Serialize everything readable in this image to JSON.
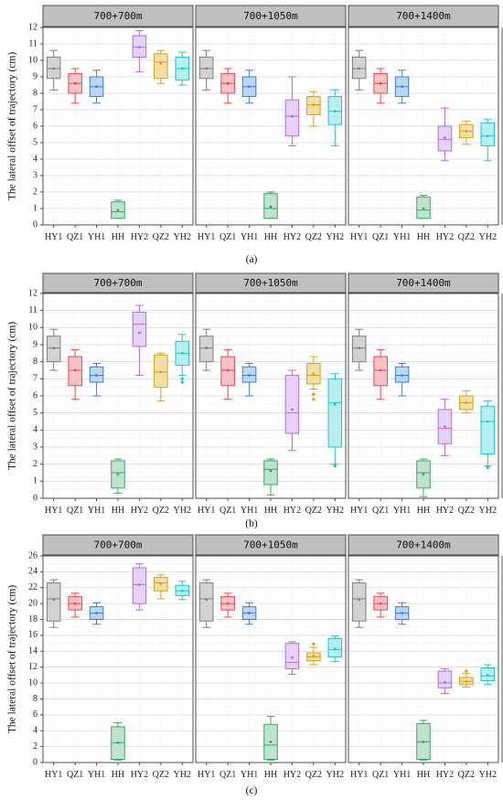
{
  "chart_data": [
    {
      "type": "box",
      "caption": "(a)",
      "ylabel": "The lateral offset of trajectory (cm)",
      "ylim": [
        0,
        12
      ],
      "yticks": [
        0,
        1,
        2,
        3,
        4,
        5,
        6,
        7,
        8,
        9,
        10,
        11,
        12
      ],
      "grid": true,
      "categories": [
        "HY1",
        "QZ1",
        "YH1",
        "HH",
        "HY2",
        "QZ2",
        "YH2"
      ],
      "colors": [
        "#7f7f7f",
        "#e8474e",
        "#3a7fd5",
        "#3aa66a",
        "#b46be0",
        "#d1a21a",
        "#22c5cc"
      ],
      "fills": [
        "#d2d2d2",
        "#f6c4c6",
        "#bdd6f4",
        "#bfe3cd",
        "#e8d1f6",
        "#f1dfa6",
        "#b7eff1"
      ],
      "panels": [
        {
          "title": "700+700m",
          "boxes": [
            {
              "min": 8.2,
              "q1": 8.9,
              "median": 9.5,
              "q3": 10.2,
              "max": 10.6,
              "mean": 9.5,
              "outliers": []
            },
            {
              "min": 7.4,
              "q1": 8.0,
              "median": 8.6,
              "q3": 9.2,
              "max": 9.5,
              "mean": 8.6,
              "outliers": []
            },
            {
              "min": 7.4,
              "q1": 7.8,
              "median": 8.4,
              "q3": 9.0,
              "max": 9.4,
              "mean": 8.4,
              "outliers": []
            },
            {
              "min": 0.4,
              "q1": 0.4,
              "median": 0.8,
              "q3": 1.4,
              "max": 1.5,
              "mean": 0.9,
              "outliers": []
            },
            {
              "min": 9.3,
              "q1": 10.2,
              "median": 10.8,
              "q3": 11.5,
              "max": 11.8,
              "mean": 10.8,
              "outliers": []
            },
            {
              "min": 8.6,
              "q1": 8.9,
              "median": 9.9,
              "q3": 10.4,
              "max": 10.6,
              "mean": 9.8,
              "outliers": []
            },
            {
              "min": 8.5,
              "q1": 8.8,
              "median": 9.5,
              "q3": 10.2,
              "max": 10.5,
              "mean": 9.5,
              "outliers": []
            }
          ]
        },
        {
          "title": "700+1050m",
          "boxes": [
            {
              "min": 8.2,
              "q1": 8.9,
              "median": 9.5,
              "q3": 10.2,
              "max": 10.6,
              "mean": 9.5,
              "outliers": []
            },
            {
              "min": 7.4,
              "q1": 8.0,
              "median": 8.6,
              "q3": 9.2,
              "max": 9.5,
              "mean": 8.6,
              "outliers": []
            },
            {
              "min": 7.4,
              "q1": 7.8,
              "median": 8.4,
              "q3": 9.0,
              "max": 9.4,
              "mean": 8.4,
              "outliers": []
            },
            {
              "min": 0.4,
              "q1": 0.4,
              "median": 1.0,
              "q3": 1.9,
              "max": 2.0,
              "mean": 1.1,
              "outliers": []
            },
            {
              "min": 4.8,
              "q1": 5.4,
              "median": 6.6,
              "q3": 7.6,
              "max": 9.0,
              "mean": 6.6,
              "outliers": []
            },
            {
              "min": 6.0,
              "q1": 6.7,
              "median": 7.3,
              "q3": 7.8,
              "max": 8.1,
              "mean": 7.3,
              "outliers": []
            },
            {
              "min": 4.8,
              "q1": 6.1,
              "median": 6.9,
              "q3": 7.8,
              "max": 8.2,
              "mean": 6.9,
              "outliers": []
            }
          ]
        },
        {
          "title": "700+1400m",
          "boxes": [
            {
              "min": 8.2,
              "q1": 8.9,
              "median": 9.5,
              "q3": 10.2,
              "max": 10.6,
              "mean": 9.5,
              "outliers": []
            },
            {
              "min": 7.4,
              "q1": 8.0,
              "median": 8.6,
              "q3": 9.2,
              "max": 9.5,
              "mean": 8.6,
              "outliers": []
            },
            {
              "min": 7.4,
              "q1": 7.8,
              "median": 8.4,
              "q3": 9.0,
              "max": 9.4,
              "mean": 8.4,
              "outliers": []
            },
            {
              "min": 0.4,
              "q1": 0.4,
              "median": 0.9,
              "q3": 1.7,
              "max": 1.8,
              "mean": 1.0,
              "outliers": []
            },
            {
              "min": 3.9,
              "q1": 4.5,
              "median": 5.2,
              "q3": 6.0,
              "max": 7.1,
              "mean": 5.3,
              "outliers": []
            },
            {
              "min": 4.9,
              "q1": 5.3,
              "median": 5.7,
              "q3": 6.1,
              "max": 6.3,
              "mean": 5.7,
              "outliers": []
            },
            {
              "min": 3.9,
              "q1": 4.8,
              "median": 5.4,
              "q3": 6.2,
              "max": 6.4,
              "mean": 5.4,
              "outliers": []
            }
          ]
        }
      ]
    },
    {
      "type": "box",
      "caption": "(b)",
      "ylabel": "The lateral offset of trajectory (cm)",
      "ylim": [
        0,
        12
      ],
      "yticks": [
        0,
        1,
        2,
        3,
        4,
        5,
        6,
        7,
        8,
        9,
        10,
        11,
        12
      ],
      "grid": true,
      "categories": [
        "HY1",
        "QZ1",
        "YH1",
        "HH",
        "HY2",
        "QZ2",
        "YH2"
      ],
      "colors": [
        "#7f7f7f",
        "#e8474e",
        "#3a7fd5",
        "#3aa66a",
        "#b46be0",
        "#d1a21a",
        "#22c5cc"
      ],
      "fills": [
        "#d2d2d2",
        "#f6c4c6",
        "#bdd6f4",
        "#bfe3cd",
        "#e8d1f6",
        "#f1dfa6",
        "#b7eff1"
      ],
      "panels": [
        {
          "title": "700+700m",
          "boxes": [
            {
              "min": 7.5,
              "q1": 8.0,
              "median": 8.8,
              "q3": 9.5,
              "max": 9.9,
              "mean": 8.8,
              "outliers": []
            },
            {
              "min": 5.8,
              "q1": 6.6,
              "median": 7.5,
              "q3": 8.3,
              "max": 8.7,
              "mean": 7.5,
              "outliers": []
            },
            {
              "min": 6.0,
              "q1": 6.8,
              "median": 7.2,
              "q3": 7.7,
              "max": 7.9,
              "mean": 7.2,
              "outliers": []
            },
            {
              "min": 0.3,
              "q1": 0.6,
              "median": 1.5,
              "q3": 2.2,
              "max": 2.3,
              "mean": 1.4,
              "outliers": []
            },
            {
              "min": 7.2,
              "q1": 8.9,
              "median": 10.2,
              "q3": 10.9,
              "max": 11.3,
              "mean": 9.7,
              "outliers": []
            },
            {
              "min": 5.7,
              "q1": 6.5,
              "median": 7.4,
              "q3": 8.4,
              "max": 8.5,
              "mean": 7.4,
              "outliers": []
            },
            {
              "min": 7.2,
              "q1": 7.8,
              "median": 8.5,
              "q3": 9.2,
              "max": 9.6,
              "mean": 8.5,
              "outliers": [
                6.8,
                7.0
              ]
            }
          ]
        },
        {
          "title": "700+1050m",
          "boxes": [
            {
              "min": 7.5,
              "q1": 8.0,
              "median": 8.8,
              "q3": 9.5,
              "max": 9.9,
              "mean": 8.8,
              "outliers": []
            },
            {
              "min": 5.8,
              "q1": 6.6,
              "median": 7.5,
              "q3": 8.3,
              "max": 8.7,
              "mean": 7.5,
              "outliers": []
            },
            {
              "min": 6.0,
              "q1": 6.8,
              "median": 7.2,
              "q3": 7.7,
              "max": 7.9,
              "mean": 7.2,
              "outliers": []
            },
            {
              "min": 0.2,
              "q1": 0.8,
              "median": 1.7,
              "q3": 2.2,
              "max": 2.3,
              "mean": 1.6,
              "outliers": []
            },
            {
              "min": 2.8,
              "q1": 3.8,
              "median": 5.0,
              "q3": 7.2,
              "max": 7.5,
              "mean": 5.2,
              "outliers": []
            },
            {
              "min": 6.4,
              "q1": 6.7,
              "median": 7.2,
              "q3": 7.9,
              "max": 8.3,
              "mean": 7.3,
              "outliers": [
                5.8,
                6.1
              ]
            },
            {
              "min": 2.0,
              "q1": 3.0,
              "median": 5.6,
              "q3": 7.0,
              "max": 7.3,
              "mean": 5.5,
              "outliers": [
                1.9
              ]
            }
          ]
        },
        {
          "title": "700+1400m",
          "boxes": [
            {
              "min": 7.5,
              "q1": 8.0,
              "median": 8.8,
              "q3": 9.5,
              "max": 9.9,
              "mean": 8.8,
              "outliers": []
            },
            {
              "min": 5.8,
              "q1": 6.6,
              "median": 7.5,
              "q3": 8.3,
              "max": 8.7,
              "mean": 7.5,
              "outliers": []
            },
            {
              "min": 6.0,
              "q1": 6.8,
              "median": 7.2,
              "q3": 7.7,
              "max": 7.9,
              "mean": 7.2,
              "outliers": []
            },
            {
              "min": 0.1,
              "q1": 0.6,
              "median": 1.5,
              "q3": 2.2,
              "max": 2.3,
              "mean": 1.4,
              "outliers": []
            },
            {
              "min": 2.5,
              "q1": 3.2,
              "median": 4.1,
              "q3": 5.2,
              "max": 5.8,
              "mean": 4.2,
              "outliers": []
            },
            {
              "min": 5.0,
              "q1": 5.2,
              "median": 5.6,
              "q3": 6.0,
              "max": 6.3,
              "mean": 5.6,
              "outliers": []
            },
            {
              "min": 1.9,
              "q1": 2.6,
              "median": 4.5,
              "q3": 5.4,
              "max": 5.7,
              "mean": 4.5,
              "outliers": [
                1.8
              ]
            }
          ]
        }
      ]
    },
    {
      "type": "box",
      "caption": "(c)",
      "ylabel": "The lateral offset of trajectory (cm)",
      "ylim": [
        0,
        26
      ],
      "yticks": [
        0,
        2,
        4,
        6,
        8,
        10,
        12,
        14,
        16,
        18,
        20,
        22,
        24,
        26
      ],
      "grid": true,
      "categories": [
        "HY1",
        "QZ1",
        "YH1",
        "HH",
        "HY2",
        "QZ2",
        "YH2"
      ],
      "colors": [
        "#7f7f7f",
        "#e8474e",
        "#3a7fd5",
        "#3aa66a",
        "#b46be0",
        "#d1a21a",
        "#22c5cc"
      ],
      "fills": [
        "#d2d2d2",
        "#f6c4c6",
        "#bdd6f4",
        "#bfe3cd",
        "#e8d1f6",
        "#f1dfa6",
        "#b7eff1"
      ],
      "panels": [
        {
          "title": "700+700m",
          "boxes": [
            {
              "min": 17.0,
              "q1": 17.8,
              "median": 20.6,
              "q3": 22.6,
              "max": 23.0,
              "mean": 20.5,
              "outliers": []
            },
            {
              "min": 18.3,
              "q1": 19.2,
              "median": 20.0,
              "q3": 20.9,
              "max": 21.3,
              "mean": 20.0,
              "outliers": []
            },
            {
              "min": 17.4,
              "q1": 18.0,
              "median": 18.8,
              "q3": 19.6,
              "max": 20.1,
              "mean": 18.8,
              "outliers": []
            },
            {
              "min": 0.3,
              "q1": 0.4,
              "median": 2.5,
              "q3": 4.5,
              "max": 5.0,
              "mean": 2.5,
              "outliers": []
            },
            {
              "min": 19.2,
              "q1": 20.0,
              "median": 22.4,
              "q3": 24.5,
              "max": 25.0,
              "mean": 22.4,
              "outliers": []
            },
            {
              "min": 20.6,
              "q1": 21.6,
              "median": 22.6,
              "q3": 23.3,
              "max": 23.6,
              "mean": 22.5,
              "outliers": []
            },
            {
              "min": 20.5,
              "q1": 21.0,
              "median": 21.6,
              "q3": 22.3,
              "max": 22.8,
              "mean": 21.6,
              "outliers": []
            }
          ]
        },
        {
          "title": "700+1050m",
          "boxes": [
            {
              "min": 17.0,
              "q1": 17.8,
              "median": 20.6,
              "q3": 22.6,
              "max": 23.0,
              "mean": 20.5,
              "outliers": []
            },
            {
              "min": 18.3,
              "q1": 19.2,
              "median": 20.0,
              "q3": 20.9,
              "max": 21.3,
              "mean": 20.0,
              "outliers": []
            },
            {
              "min": 17.4,
              "q1": 18.0,
              "median": 18.8,
              "q3": 19.6,
              "max": 20.1,
              "mean": 18.8,
              "outliers": []
            },
            {
              "min": 0.3,
              "q1": 0.4,
              "median": 2.2,
              "q3": 4.8,
              "max": 5.8,
              "mean": 2.6,
              "outliers": []
            },
            {
              "min": 11.1,
              "q1": 11.8,
              "median": 12.6,
              "q3": 15.0,
              "max": 15.2,
              "mean": 13.2,
              "outliers": []
            },
            {
              "min": 12.3,
              "q1": 12.8,
              "median": 13.3,
              "q3": 13.8,
              "max": 14.5,
              "mean": 13.4,
              "outliers": [
                14.9
              ]
            },
            {
              "min": 12.7,
              "q1": 13.3,
              "median": 14.2,
              "q3": 15.6,
              "max": 15.9,
              "mean": 14.3,
              "outliers": []
            }
          ]
        },
        {
          "title": "700+1400m",
          "boxes": [
            {
              "min": 17.0,
              "q1": 17.8,
              "median": 20.6,
              "q3": 22.6,
              "max": 23.0,
              "mean": 20.5,
              "outliers": []
            },
            {
              "min": 18.3,
              "q1": 19.2,
              "median": 20.0,
              "q3": 20.9,
              "max": 21.3,
              "mean": 20.0,
              "outliers": []
            },
            {
              "min": 17.4,
              "q1": 18.0,
              "median": 18.8,
              "q3": 19.6,
              "max": 20.1,
              "mean": 18.8,
              "outliers": []
            },
            {
              "min": 0.3,
              "q1": 0.4,
              "median": 2.6,
              "q3": 4.9,
              "max": 5.3,
              "mean": 2.6,
              "outliers": []
            },
            {
              "min": 8.7,
              "q1": 9.4,
              "median": 10.0,
              "q3": 11.5,
              "max": 11.8,
              "mean": 10.1,
              "outliers": []
            },
            {
              "min": 9.5,
              "q1": 9.8,
              "median": 10.2,
              "q3": 10.7,
              "max": 11.2,
              "mean": 10.2,
              "outliers": [
                11.5
              ]
            },
            {
              "min": 9.8,
              "q1": 10.3,
              "median": 10.9,
              "q3": 11.9,
              "max": 12.3,
              "mean": 11.0,
              "outliers": []
            }
          ]
        }
      ]
    }
  ]
}
